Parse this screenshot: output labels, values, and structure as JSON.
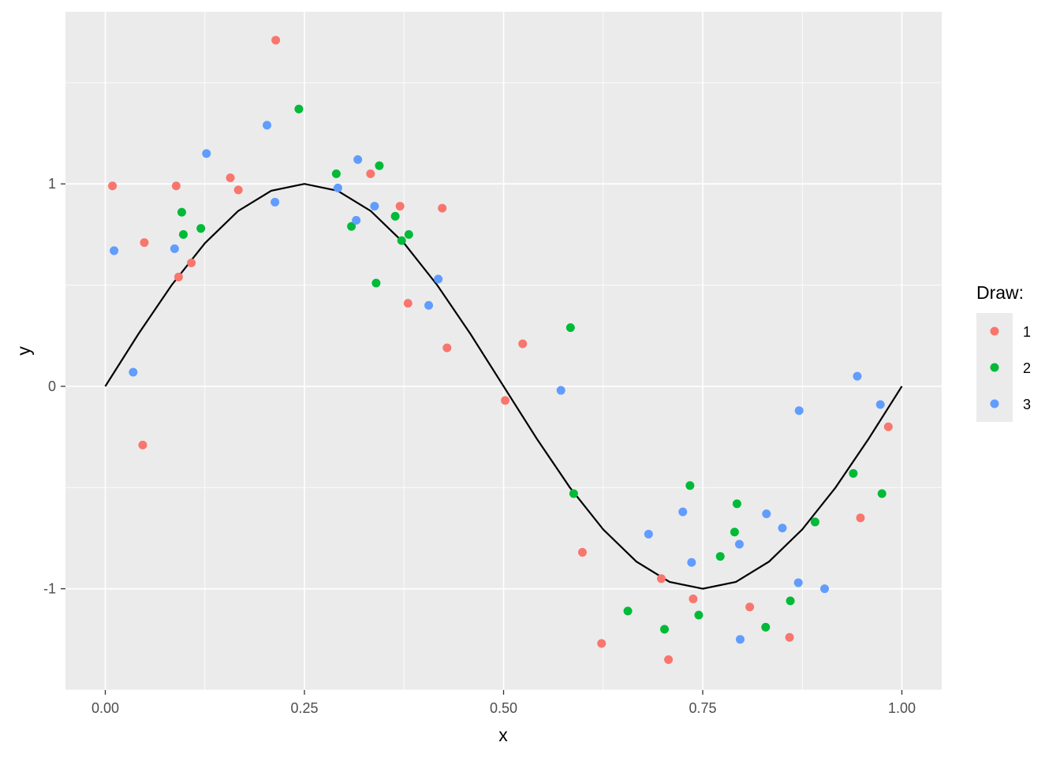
{
  "chart_data": {
    "type": "scatter",
    "title": "",
    "xlabel": "x",
    "ylabel": "y",
    "xlim": [
      -0.05,
      1.05
    ],
    "ylim": [
      -1.5,
      1.85
    ],
    "x_ticks": [
      {
        "value": 0,
        "label": "0.00"
      },
      {
        "value": 0.25,
        "label": "0.25"
      },
      {
        "value": 0.5,
        "label": "0.50"
      },
      {
        "value": 0.75,
        "label": "0.75"
      },
      {
        "value": 1,
        "label": "1.00"
      }
    ],
    "y_ticks": [
      {
        "value": -1,
        "label": "-1"
      },
      {
        "value": 0,
        "label": "0"
      },
      {
        "value": 1,
        "label": "1"
      }
    ],
    "grid": true,
    "legend": {
      "title": "Draw:",
      "position": "right"
    },
    "line": {
      "x": [
        0,
        0.0417,
        0.0833,
        0.125,
        0.1667,
        0.2083,
        0.25,
        0.2917,
        0.3333,
        0.375,
        0.4167,
        0.4583,
        0.5,
        0.5417,
        0.5833,
        0.625,
        0.6667,
        0.7083,
        0.75,
        0.7917,
        0.8333,
        0.875,
        0.9167,
        0.9583,
        1
      ],
      "y": [
        0,
        0.259,
        0.5,
        0.707,
        0.866,
        0.966,
        1,
        0.966,
        0.866,
        0.707,
        0.5,
        0.259,
        0,
        -0.259,
        -0.5,
        -0.707,
        -0.866,
        -0.966,
        -1,
        -0.966,
        -0.866,
        -0.707,
        -0.5,
        -0.259,
        0
      ],
      "color": "#000000"
    },
    "series": [
      {
        "name": "1",
        "color": "#F8766D",
        "points": [
          [
            0.009,
            0.99
          ],
          [
            0.047,
            -0.29
          ],
          [
            0.049,
            0.71
          ],
          [
            0.089,
            0.99
          ],
          [
            0.092,
            0.54
          ],
          [
            0.108,
            0.61
          ],
          [
            0.157,
            1.03
          ],
          [
            0.167,
            0.97
          ],
          [
            0.214,
            1.71
          ],
          [
            0.333,
            1.05
          ],
          [
            0.37,
            0.89
          ],
          [
            0.38,
            0.41
          ],
          [
            0.423,
            0.88
          ],
          [
            0.429,
            0.19
          ],
          [
            0.502,
            -0.07
          ],
          [
            0.524,
            0.21
          ],
          [
            0.599,
            -0.82
          ],
          [
            0.623,
            -1.27
          ],
          [
            0.698,
            -0.95
          ],
          [
            0.707,
            -1.35
          ],
          [
            0.738,
            -1.05
          ],
          [
            0.809,
            -1.09
          ],
          [
            0.859,
            -1.24
          ],
          [
            0.948,
            -0.65
          ],
          [
            0.983,
            -0.2
          ]
        ]
      },
      {
        "name": "2",
        "color": "#00BA38",
        "points": [
          [
            0.096,
            0.86
          ],
          [
            0.098,
            0.75
          ],
          [
            0.12,
            0.78
          ],
          [
            0.243,
            1.37
          ],
          [
            0.29,
            1.05
          ],
          [
            0.309,
            0.79
          ],
          [
            0.34,
            0.51
          ],
          [
            0.344,
            1.09
          ],
          [
            0.364,
            0.84
          ],
          [
            0.372,
            0.72
          ],
          [
            0.381,
            0.75
          ],
          [
            0.584,
            0.29
          ],
          [
            0.588,
            -0.53
          ],
          [
            0.656,
            -1.11
          ],
          [
            0.702,
            -1.2
          ],
          [
            0.734,
            -0.49
          ],
          [
            0.745,
            -1.13
          ],
          [
            0.772,
            -0.84
          ],
          [
            0.79,
            -0.72
          ],
          [
            0.793,
            -0.58
          ],
          [
            0.829,
            -1.19
          ],
          [
            0.86,
            -1.06
          ],
          [
            0.891,
            -0.67
          ],
          [
            0.939,
            -0.43
          ],
          [
            0.975,
            -0.53
          ]
        ]
      },
      {
        "name": "3",
        "color": "#619CFF",
        "points": [
          [
            0.011,
            0.67
          ],
          [
            0.035,
            0.07
          ],
          [
            0.087,
            0.68
          ],
          [
            0.127,
            1.15
          ],
          [
            0.203,
            1.29
          ],
          [
            0.213,
            0.91
          ],
          [
            0.292,
            0.98
          ],
          [
            0.315,
            0.82
          ],
          [
            0.317,
            1.12
          ],
          [
            0.338,
            0.89
          ],
          [
            0.406,
            0.4
          ],
          [
            0.418,
            0.53
          ],
          [
            0.572,
            -0.02
          ],
          [
            0.682,
            -0.73
          ],
          [
            0.725,
            -0.62
          ],
          [
            0.736,
            -0.87
          ],
          [
            0.796,
            -0.78
          ],
          [
            0.797,
            -1.25
          ],
          [
            0.83,
            -0.63
          ],
          [
            0.85,
            -0.7
          ],
          [
            0.87,
            -0.97
          ],
          [
            0.871,
            -0.12
          ],
          [
            0.903,
            -1.0
          ],
          [
            0.944,
            0.05
          ],
          [
            0.973,
            -0.09
          ]
        ]
      }
    ],
    "panel_background": "#EBEBEB",
    "grid_color": "#FFFFFF"
  }
}
